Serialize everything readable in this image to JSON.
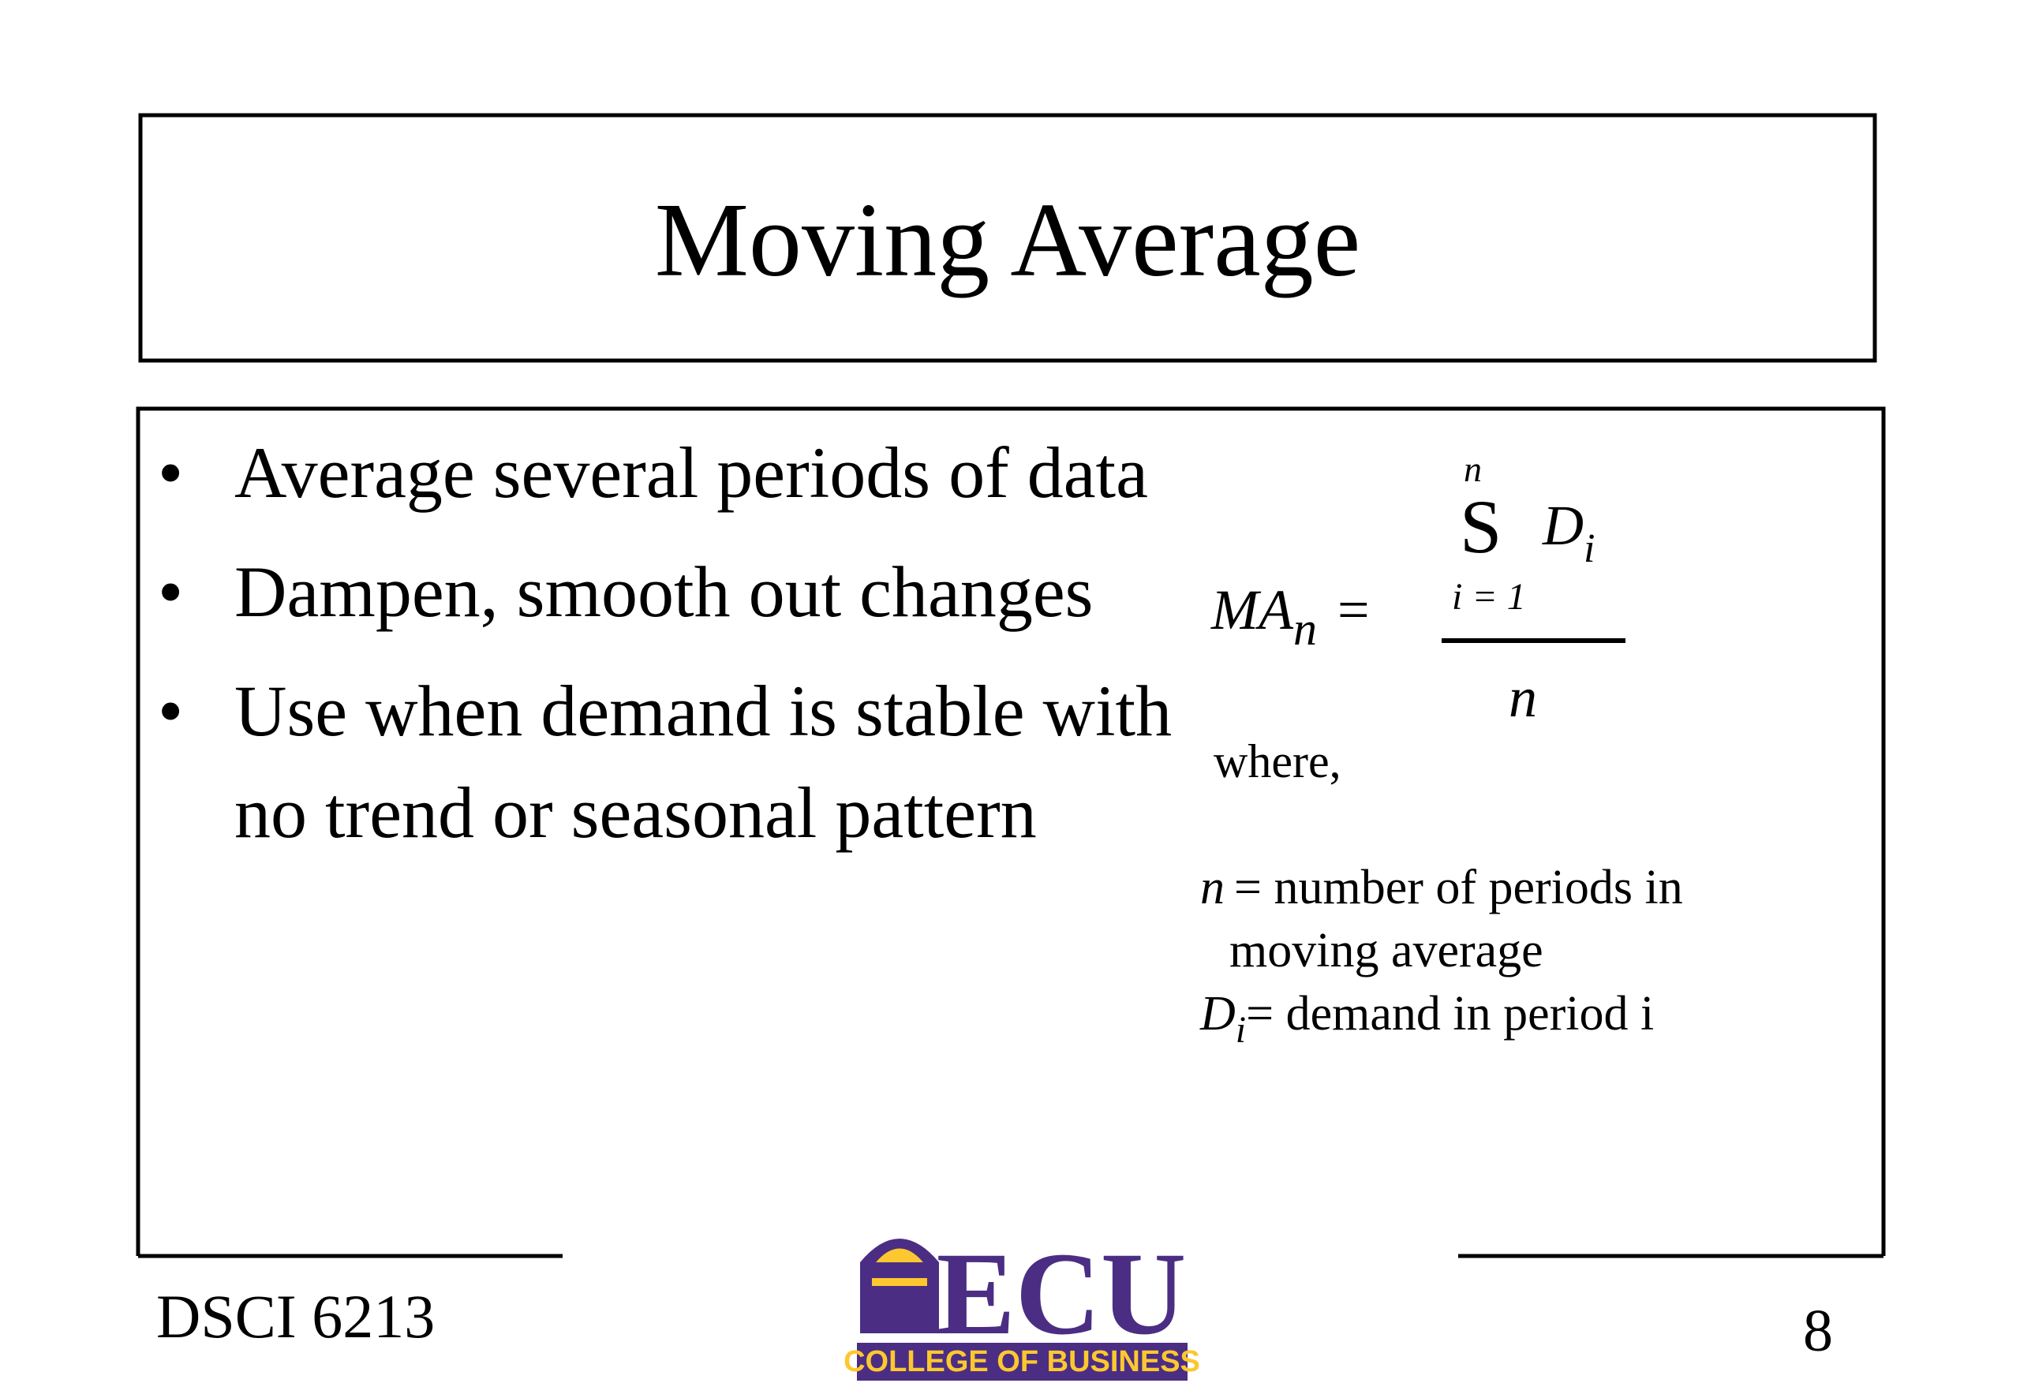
{
  "title": "Moving Average",
  "bullets": [
    "Average several periods of data",
    "Dampen, smooth out changes",
    "Use when demand is stable with no trend or seasonal pattern"
  ],
  "formula": {
    "lhs": "MA",
    "lhs_sub": "n",
    "equals": "=",
    "sum_upper": "n",
    "sum_symbol": "S",
    "term": "D",
    "term_sub": "i",
    "sum_lower": "i = 1",
    "denominator": "n"
  },
  "where": "where,",
  "definitions": [
    {
      "symbol": "n",
      "text": "= number of periods in",
      "text_cont": "moving average"
    },
    {
      "symbol": "D",
      "sub": "i",
      "text": "= demand in period i"
    }
  ],
  "footer": {
    "course": "DSCI 6213",
    "page": "8",
    "logo_text": "ECU",
    "logo_caption": "COLLEGE OF BUSINESS"
  }
}
